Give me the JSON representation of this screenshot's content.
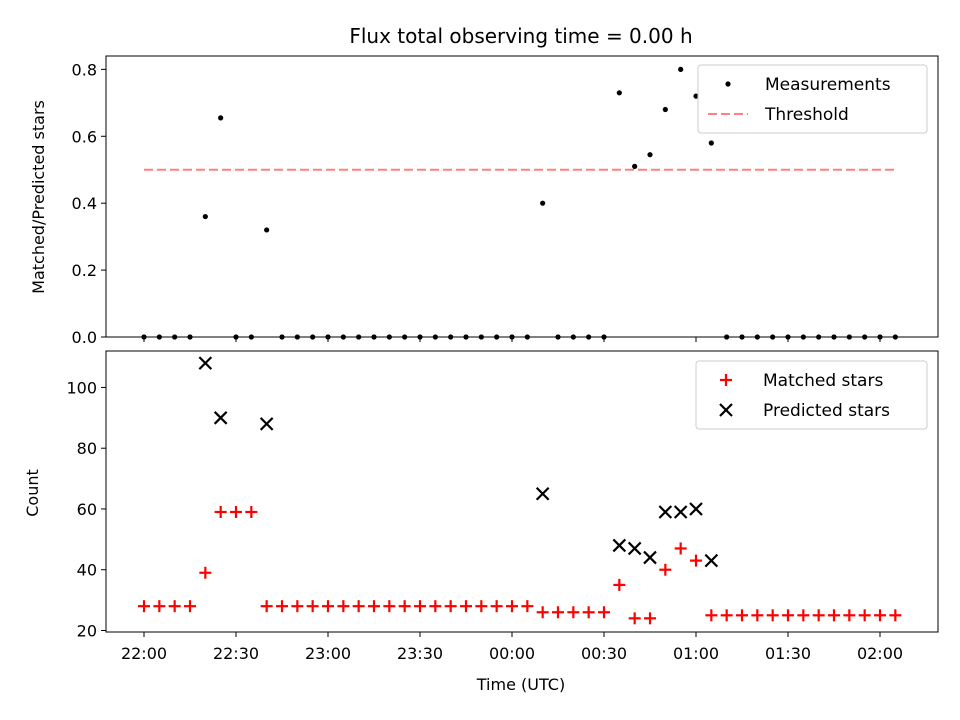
{
  "chart_data": [
    {
      "type": "scatter",
      "title": "Flux total observing time = 0.00 h",
      "xlabel": "",
      "ylabel": "Matched/Predicted stars",
      "ylim": [
        0,
        0.84
      ],
      "yticks": [
        "0.0",
        "0.2",
        "0.4",
        "0.6",
        "0.8"
      ],
      "ytick_values": [
        0,
        0.2,
        0.4,
        0.6,
        0.8
      ],
      "legend_position": "top-right",
      "series": [
        {
          "name": "Measurements",
          "marker": "dot",
          "color": "#000000",
          "x": [
            "22:00",
            "22:05",
            "22:10",
            "22:15",
            "22:20",
            "22:25",
            "22:30",
            "22:35",
            "22:40",
            "22:45",
            "22:50",
            "22:55",
            "23:00",
            "23:05",
            "23:10",
            "23:15",
            "23:20",
            "23:25",
            "23:30",
            "23:35",
            "23:40",
            "23:45",
            "23:50",
            "23:55",
            "00:00",
            "00:05",
            "00:10",
            "00:15",
            "00:20",
            "00:25",
            "00:30",
            "00:35",
            "00:40",
            "00:45",
            "00:50",
            "00:55",
            "01:00",
            "01:05",
            "01:10",
            "01:15",
            "01:20",
            "01:25",
            "01:30",
            "01:35",
            "01:40",
            "01:45",
            "01:50",
            "01:55",
            "02:00",
            "02:05"
          ],
          "y": [
            0,
            0,
            0,
            0,
            0.36,
            0.655,
            0,
            0,
            0.32,
            0,
            0,
            0,
            0,
            0,
            0,
            0,
            0,
            0,
            0,
            0,
            0,
            0,
            0,
            0,
            0,
            0,
            0.4,
            0,
            0,
            0,
            0,
            0.73,
            0.51,
            0.545,
            0.68,
            0.8,
            0.72,
            0.58,
            0,
            0,
            0,
            0,
            0,
            0,
            0,
            0,
            0,
            0,
            0,
            0
          ]
        },
        {
          "name": "Threshold",
          "marker": "dashed-line",
          "color": "#ff8080",
          "x": [
            "22:00",
            "02:05"
          ],
          "y": [
            0.5,
            0.5
          ]
        }
      ]
    },
    {
      "type": "scatter",
      "title": "",
      "xlabel": "Time (UTC)",
      "ylabel": "Count",
      "ylim": [
        19.5,
        112
      ],
      "yticks": [
        "20",
        "40",
        "60",
        "80",
        "100"
      ],
      "ytick_values": [
        20,
        40,
        60,
        80,
        100
      ],
      "xticks": [
        "22:00",
        "22:30",
        "23:00",
        "23:30",
        "00:00",
        "00:30",
        "01:00",
        "01:30",
        "02:00"
      ],
      "legend_position": "top-right",
      "series": [
        {
          "name": "Matched stars",
          "marker": "plus",
          "color": "#ff0000",
          "x": [
            "22:00",
            "22:05",
            "22:10",
            "22:15",
            "22:20",
            "22:25",
            "22:30",
            "22:35",
            "22:40",
            "22:45",
            "22:50",
            "22:55",
            "23:00",
            "23:05",
            "23:10",
            "23:15",
            "23:20",
            "23:25",
            "23:30",
            "23:35",
            "23:40",
            "23:45",
            "23:50",
            "23:55",
            "00:00",
            "00:05",
            "00:10",
            "00:15",
            "00:20",
            "00:25",
            "00:30",
            "00:35",
            "00:40",
            "00:45",
            "00:50",
            "00:55",
            "01:00",
            "01:05",
            "01:10",
            "01:15",
            "01:20",
            "01:25",
            "01:30",
            "01:35",
            "01:40",
            "01:45",
            "01:50",
            "01:55",
            "02:00",
            "02:05"
          ],
          "y": [
            28,
            28,
            28,
            28,
            39,
            59,
            59,
            59,
            28,
            28,
            28,
            28,
            28,
            28,
            28,
            28,
            28,
            28,
            28,
            28,
            28,
            28,
            28,
            28,
            28,
            28,
            26,
            26,
            26,
            26,
            26,
            35,
            24,
            24,
            40,
            47,
            43,
            25,
            25,
            25,
            25,
            25,
            25,
            25,
            25,
            25,
            25,
            25,
            25,
            25
          ]
        },
        {
          "name": "Predicted stars",
          "marker": "x",
          "color": "#000000",
          "x": [
            "22:20",
            "22:25",
            "22:40",
            "00:10",
            "00:35",
            "00:40",
            "00:45",
            "00:50",
            "00:55",
            "01:00",
            "01:05"
          ],
          "y": [
            108,
            90,
            88,
            65,
            48,
            47,
            44,
            59,
            59,
            60,
            43
          ]
        }
      ]
    }
  ]
}
